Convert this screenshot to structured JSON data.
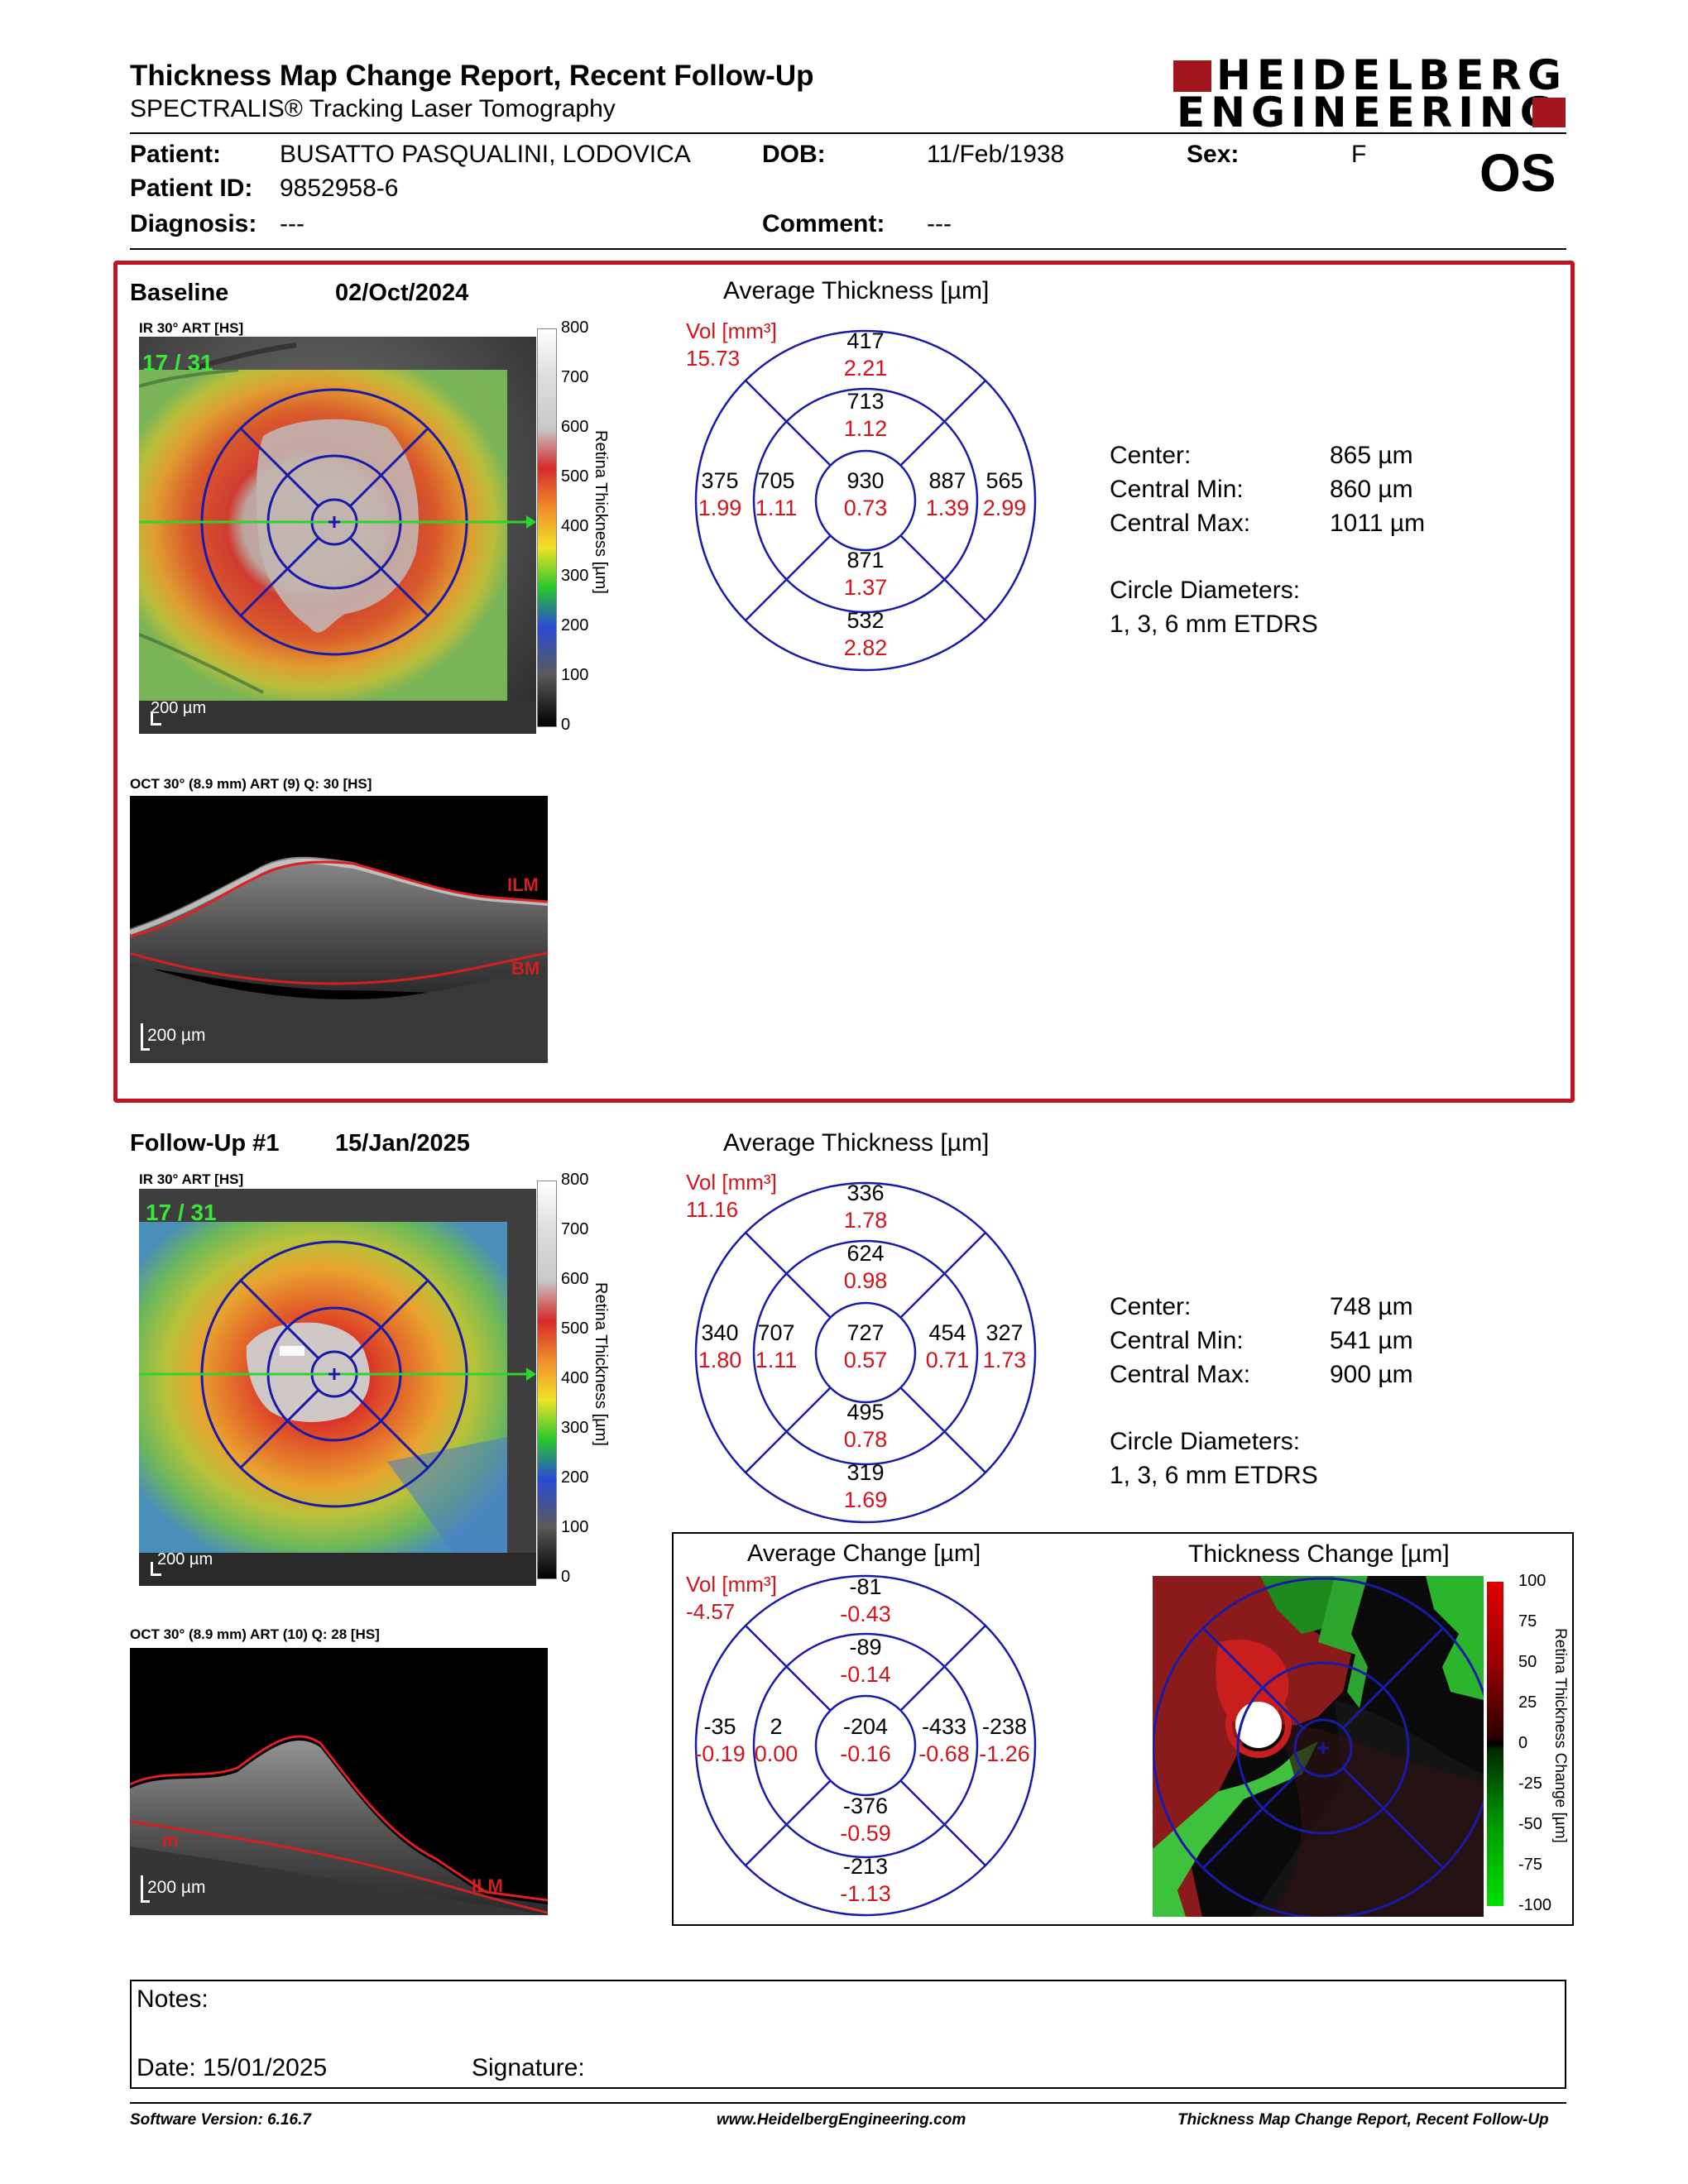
{
  "header": {
    "title": "Thickness Map Change Report, Recent Follow-Up",
    "subtitle": "SPECTRALIS® Tracking Laser Tomography",
    "logo_line1": "HEIDELBERG",
    "logo_line2": "ENGINEERING",
    "eye": "OS"
  },
  "patient": {
    "patient_label": "Patient:",
    "patient_value": "BUSATTO PASQUALINI, LODOVICA",
    "dob_label": "DOB:",
    "dob_value": "11/Feb/1938",
    "sex_label": "Sex:",
    "sex_value": "F",
    "id_label": "Patient ID:",
    "id_value": "9852958-6",
    "diagnosis_label": "Diagnosis:",
    "diagnosis_value": "---",
    "comment_label": "Comment:",
    "comment_value": "---"
  },
  "baseline": {
    "label": "Baseline",
    "date": "02/Oct/2024",
    "ir_label": "IR 30° ART [HS]",
    "frame": "17 / 31",
    "scale": "200 µm",
    "oct_label": "OCT 30° (8.9 mm) ART (9) Q: 30 [HS]",
    "oct_scale": "200 µm",
    "oct_ilm": "ILM",
    "oct_bm": "BM",
    "avg_title": "Average Thickness [µm]",
    "vol_label": "Vol [mm³]",
    "vol_total": "15.73",
    "grid": {
      "superior_outer": [
        "417",
        "2.21"
      ],
      "superior_inner": [
        "713",
        "1.12"
      ],
      "temporal_outer": [
        "375",
        "1.99"
      ],
      "temporal_inner": [
        "705",
        "1.11"
      ],
      "center": [
        "930",
        "0.73"
      ],
      "nasal_inner": [
        "887",
        "1.39"
      ],
      "nasal_outer": [
        "565",
        "2.99"
      ],
      "inferior_inner": [
        "871",
        "1.37"
      ],
      "inferior_outer": [
        "532",
        "2.82"
      ]
    },
    "center_label": "Center:",
    "center_value": "865 µm",
    "cmin_label": "Central Min:",
    "cmin_value": "860 µm",
    "cmax_label": "Central Max:",
    "cmax_value": "1011 µm",
    "circle_label": "Circle Diameters:",
    "circle_value": "1, 3, 6 mm ETDRS"
  },
  "followup": {
    "label": "Follow-Up #1",
    "date": "15/Jan/2025",
    "ir_label": "IR 30° ART [HS]",
    "frame": "17 / 31",
    "scale": "200 µm",
    "oct_label": "OCT 30° (8.9 mm) ART (10) Q: 28 [HS]",
    "oct_scale": "200 µm",
    "oct_ilm": "ILM",
    "oct_bm": "m",
    "avg_title": "Average Thickness [µm]",
    "vol_label": "Vol [mm³]",
    "vol_total": "11.16",
    "grid": {
      "superior_outer": [
        "336",
        "1.78"
      ],
      "superior_inner": [
        "624",
        "0.98"
      ],
      "temporal_outer": [
        "340",
        "1.80"
      ],
      "temporal_inner": [
        "707",
        "1.11"
      ],
      "center": [
        "727",
        "0.57"
      ],
      "nasal_inner": [
        "454",
        "0.71"
      ],
      "nasal_outer": [
        "327",
        "1.73"
      ],
      "inferior_inner": [
        "495",
        "0.78"
      ],
      "inferior_outer": [
        "319",
        "1.69"
      ]
    },
    "center_label": "Center:",
    "center_value": "748 µm",
    "cmin_label": "Central Min:",
    "cmin_value": "541 µm",
    "cmax_label": "Central Max:",
    "cmax_value": "900 µm",
    "circle_label": "Circle Diameters:",
    "circle_value": "1, 3, 6 mm ETDRS"
  },
  "change": {
    "avg_title": "Average Change [µm]",
    "vol_label": "Vol [mm³]",
    "vol_total": "-4.57",
    "grid": {
      "superior_outer": [
        "-81",
        "-0.43"
      ],
      "superior_inner": [
        "-89",
        "-0.14"
      ],
      "temporal_outer": [
        "-35",
        "-0.19"
      ],
      "temporal_inner": [
        "2",
        "0.00"
      ],
      "center": [
        "-204",
        "-0.16"
      ],
      "nasal_inner": [
        "-433",
        "-0.68"
      ],
      "nasal_outer": [
        "-238",
        "-1.26"
      ],
      "inferior_inner": [
        "-376",
        "-0.59"
      ],
      "inferior_outer": [
        "-213",
        "-1.13"
      ]
    },
    "map_title": "Thickness Change [µm]",
    "colorbar_title": "Retina Thickness Change [µm]",
    "colorbar_ticks": [
      "100",
      "75",
      "50",
      "25",
      "0",
      "-25",
      "-50",
      "-75",
      "-100"
    ]
  },
  "colorbar": {
    "title": "Retina Thickness [µm]",
    "ticks": [
      "800",
      "700",
      "600",
      "500",
      "400",
      "300",
      "200",
      "100",
      "0"
    ]
  },
  "notes": {
    "notes_label": "Notes:",
    "date_label": "Date: 15/01/2025",
    "signature_label": "Signature:"
  },
  "footer": {
    "software": "Software Version: 6.16.7",
    "website": "www.HeidelbergEngineering.com",
    "report_name": "Thickness Map Change Report, Recent Follow-Up"
  },
  "colors": {
    "accent_red": "#c0151f",
    "grid_blue": "#1a1aa8",
    "value_red": "#d4141c",
    "logo_red": "#a3161d"
  }
}
